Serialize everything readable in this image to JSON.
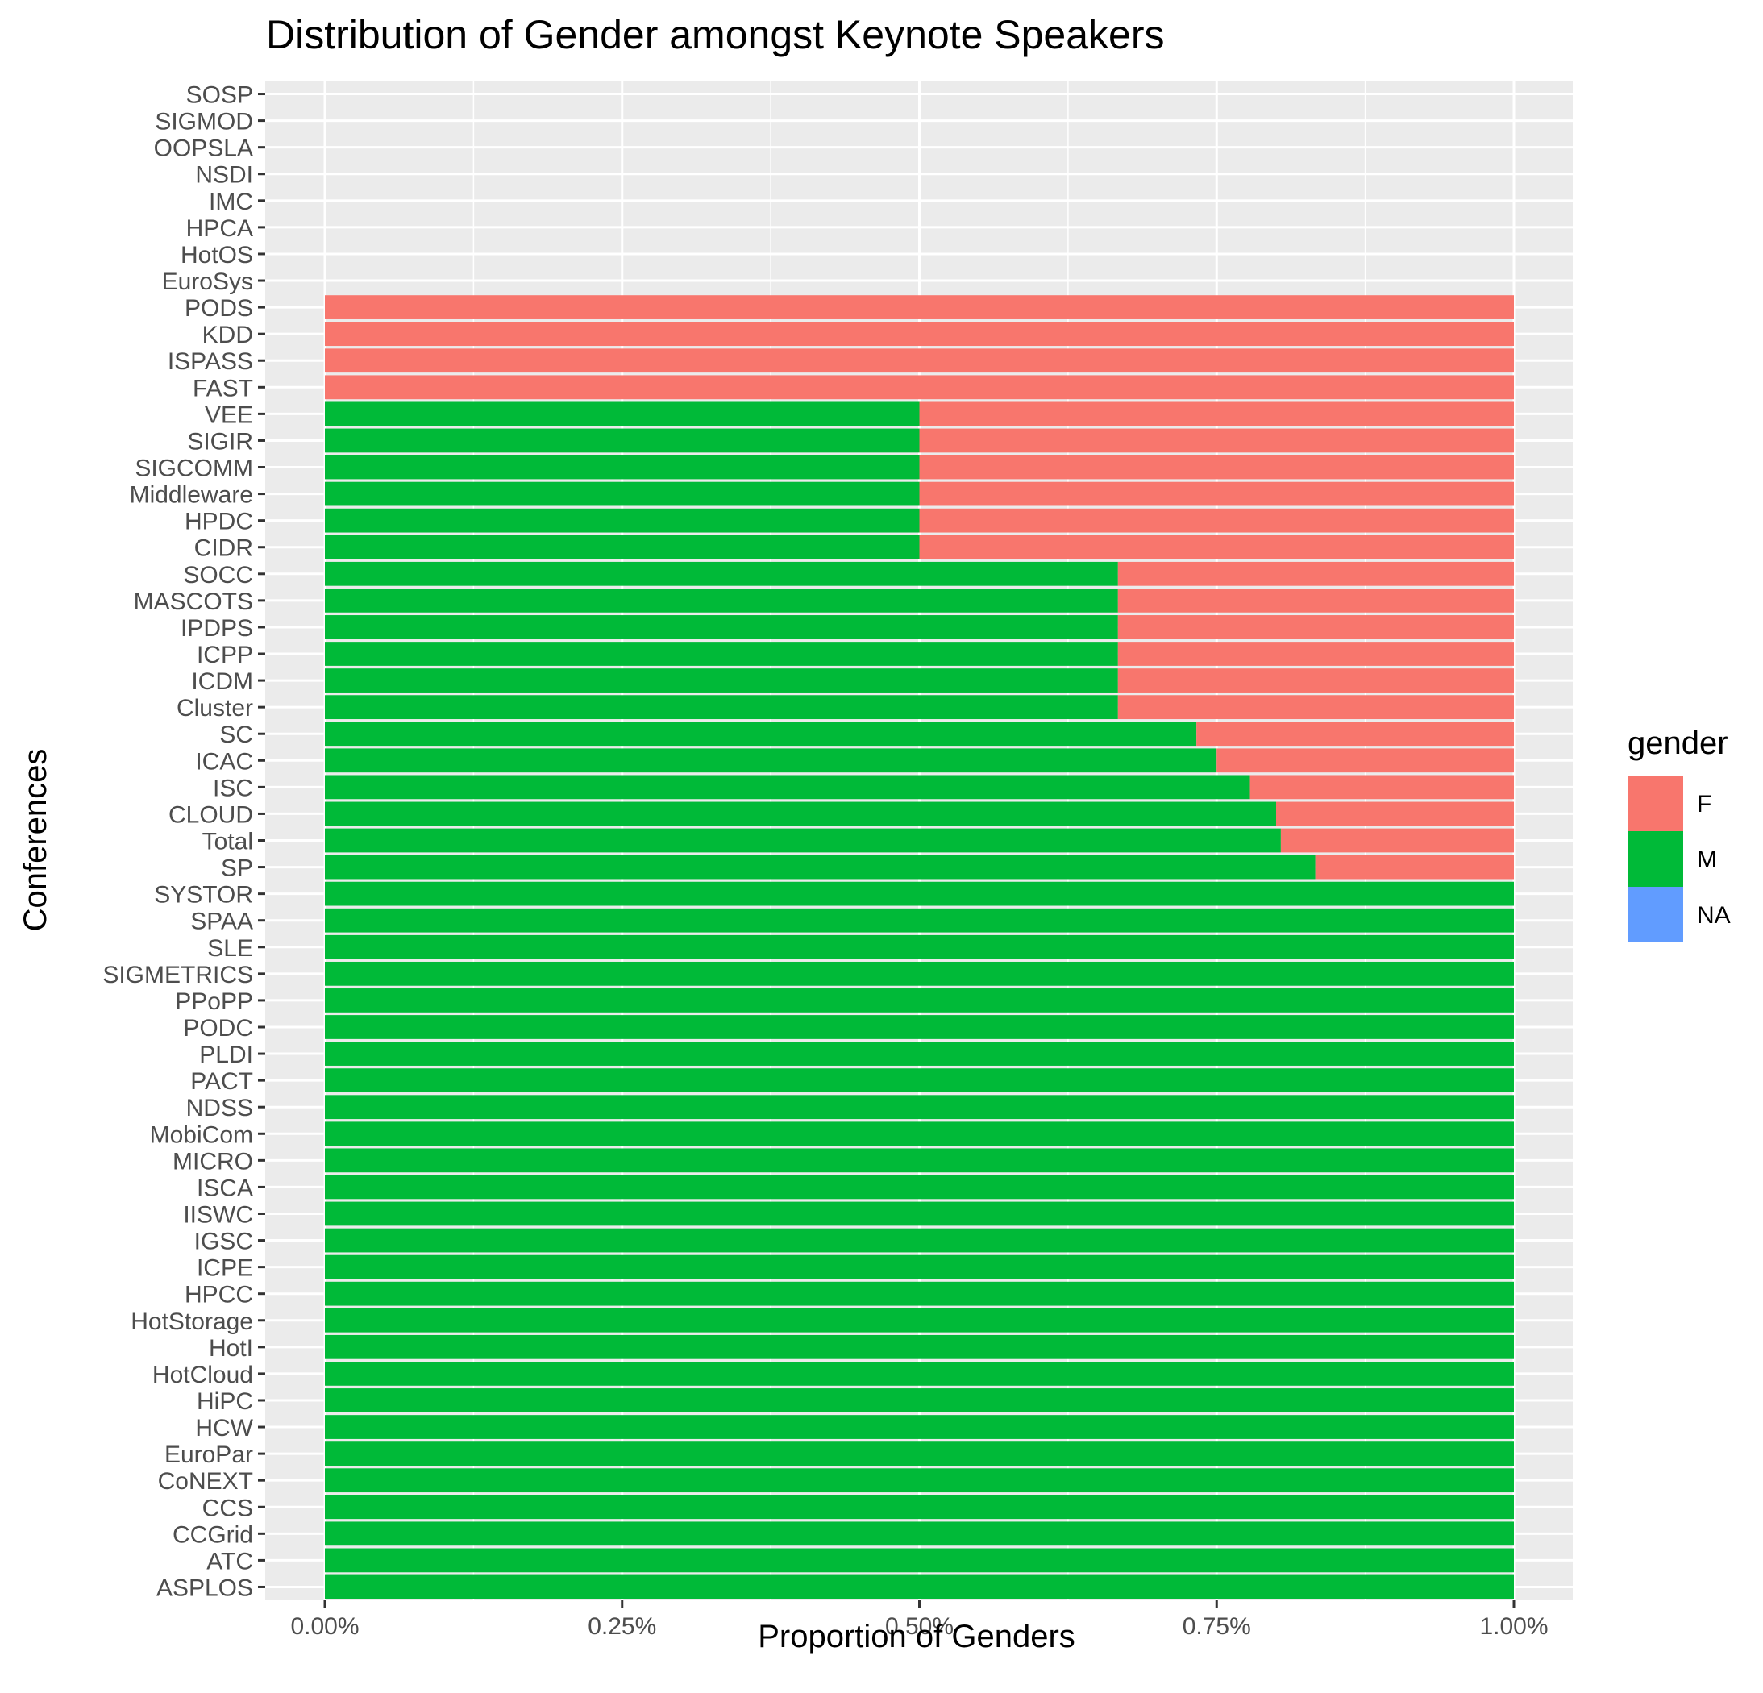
{
  "chart_data": {
    "type": "bar",
    "orientation": "horizontal",
    "stacked": true,
    "title": "Distribution of Gender amongst Keynote Speakers",
    "xlabel": "Proportion of Genders",
    "ylabel": "Conferences",
    "xlim": [
      0,
      1
    ],
    "x_ticks": [
      0,
      0.25,
      0.5,
      0.75,
      1.0
    ],
    "x_tick_labels": [
      "0.00%",
      "0.25%",
      "0.50%",
      "0.75%",
      "1.00%"
    ],
    "grid": true,
    "legend_position": "right",
    "legend_title": "gender",
    "categories": [
      "SOSP",
      "SIGMOD",
      "OOPSLA",
      "NSDI",
      "IMC",
      "HPCA",
      "HotOS",
      "EuroSys",
      "PODS",
      "KDD",
      "ISPASS",
      "FAST",
      "VEE",
      "SIGIR",
      "SIGCOMM",
      "Middleware",
      "HPDC",
      "CIDR",
      "SOCC",
      "MASCOTS",
      "IPDPS",
      "ICPP",
      "ICDM",
      "Cluster",
      "SC",
      "ICAC",
      "ISC",
      "CLOUD",
      "Total",
      "SP",
      "SYSTOR",
      "SPAA",
      "SLE",
      "SIGMETRICS",
      "PPoPP",
      "PODC",
      "PLDI",
      "PACT",
      "NDSS",
      "MobiCom",
      "MICRO",
      "ISCA",
      "IISWC",
      "IGSC",
      "ICPE",
      "HPCC",
      "HotStorage",
      "HotI",
      "HotCloud",
      "HiPC",
      "HCW",
      "EuroPar",
      "CoNEXT",
      "CCS",
      "CCGrid",
      "ATC",
      "ASPLOS"
    ],
    "series": [
      {
        "name": "F",
        "color": "#F8766D",
        "values": [
          0,
          0,
          0,
          0,
          0,
          0,
          0,
          0,
          1,
          1,
          1,
          1,
          0.5,
          0.5,
          0.5,
          0.5,
          0.5,
          0.5,
          0.333,
          0.333,
          0.333,
          0.333,
          0.333,
          0.333,
          0.267,
          0.25,
          0.222,
          0.2,
          0.196,
          0.167,
          0,
          0,
          0,
          0,
          0,
          0,
          0,
          0,
          0,
          0,
          0,
          0,
          0,
          0,
          0,
          0,
          0,
          0,
          0,
          0,
          0,
          0,
          0,
          0,
          0,
          0,
          0
        ]
      },
      {
        "name": "M",
        "color": "#00BA38",
        "values": [
          0,
          0,
          0,
          0,
          0,
          0,
          0,
          0,
          0,
          0,
          0,
          0,
          0.5,
          0.5,
          0.5,
          0.5,
          0.5,
          0.5,
          0.667,
          0.667,
          0.667,
          0.667,
          0.667,
          0.667,
          0.733,
          0.75,
          0.778,
          0.8,
          0.804,
          0.833,
          1,
          1,
          1,
          1,
          1,
          1,
          1,
          1,
          1,
          1,
          1,
          1,
          1,
          1,
          1,
          1,
          1,
          1,
          1,
          1,
          1,
          1,
          1,
          1,
          1,
          1,
          1
        ]
      },
      {
        "name": "NA",
        "color": "#619CFF",
        "values": [
          0,
          0,
          0,
          0,
          0,
          0,
          0,
          0,
          0,
          0,
          0,
          0,
          0,
          0,
          0,
          0,
          0,
          0,
          0,
          0,
          0,
          0,
          0,
          0,
          0,
          0,
          0,
          0,
          0,
          0,
          0,
          0,
          0,
          0,
          0,
          0,
          0,
          0,
          0,
          0,
          0,
          0,
          0,
          0,
          0,
          0,
          0,
          0,
          0,
          0,
          0,
          0,
          0,
          0,
          0,
          0,
          0
        ]
      }
    ]
  },
  "colors": {
    "panel_background": "#EBEBEB",
    "grid_line": "#FFFFFF",
    "tick_text": "#4D4D4D",
    "tick_mark": "#333333"
  }
}
